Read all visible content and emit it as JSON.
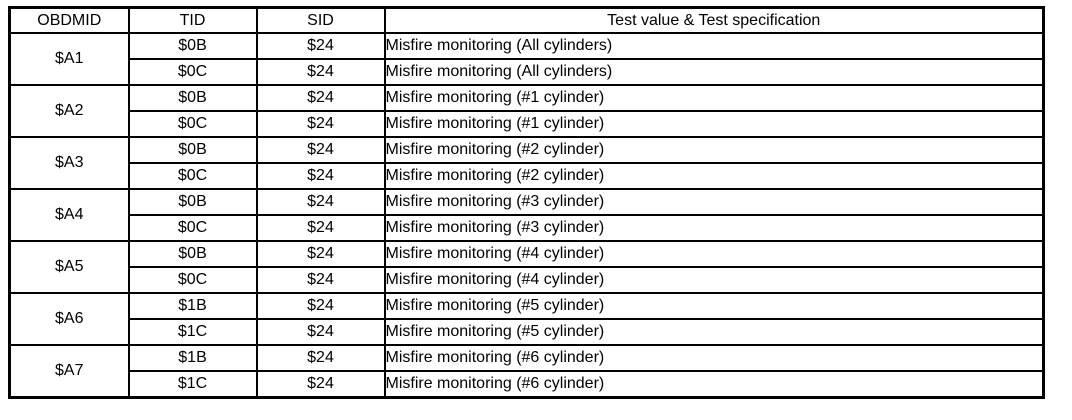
{
  "table": {
    "border_color": "#000000",
    "background_color": "#ffffff",
    "columns": [
      {
        "key": "obdmid",
        "label": "OBDMID"
      },
      {
        "key": "tid",
        "label": "TID"
      },
      {
        "key": "sid",
        "label": "SID"
      },
      {
        "key": "test",
        "label": "Test value & Test specification"
      }
    ],
    "groups": [
      {
        "obdmid": "$A1",
        "rows": [
          {
            "tid": "$0B",
            "sid": "$24",
            "test": "Misfire monitoring (All cylinders)"
          },
          {
            "tid": "$0C",
            "sid": "$24",
            "test": "Misfire monitoring (All cylinders)"
          }
        ]
      },
      {
        "obdmid": "$A2",
        "rows": [
          {
            "tid": "$0B",
            "sid": "$24",
            "test": "Misfire monitoring (#1 cylinder)"
          },
          {
            "tid": "$0C",
            "sid": "$24",
            "test": "Misfire monitoring (#1 cylinder)"
          }
        ]
      },
      {
        "obdmid": "$A3",
        "rows": [
          {
            "tid": "$0B",
            "sid": "$24",
            "test": "Misfire monitoring (#2 cylinder)"
          },
          {
            "tid": "$0C",
            "sid": "$24",
            "test": "Misfire monitoring (#2 cylinder)"
          }
        ]
      },
      {
        "obdmid": "$A4",
        "rows": [
          {
            "tid": "$0B",
            "sid": "$24",
            "test": "Misfire monitoring (#3 cylinder)"
          },
          {
            "tid": "$0C",
            "sid": "$24",
            "test": "Misfire monitoring (#3 cylinder)"
          }
        ]
      },
      {
        "obdmid": "$A5",
        "rows": [
          {
            "tid": "$0B",
            "sid": "$24",
            "test": "Misfire monitoring (#4 cylinder)"
          },
          {
            "tid": "$0C",
            "sid": "$24",
            "test": "Misfire monitoring (#4 cylinder)"
          }
        ]
      },
      {
        "obdmid": "$A6",
        "rows": [
          {
            "tid": "$1B",
            "sid": "$24",
            "test": "Misfire monitoring (#5 cylinder)"
          },
          {
            "tid": "$1C",
            "sid": "$24",
            "test": "Misfire monitoring (#5 cylinder)"
          }
        ]
      },
      {
        "obdmid": "$A7",
        "rows": [
          {
            "tid": "$1B",
            "sid": "$24",
            "test": "Misfire monitoring (#6 cylinder)"
          },
          {
            "tid": "$1C",
            "sid": "$24",
            "test": "Misfire monitoring (#6 cylinder)"
          }
        ]
      }
    ]
  }
}
